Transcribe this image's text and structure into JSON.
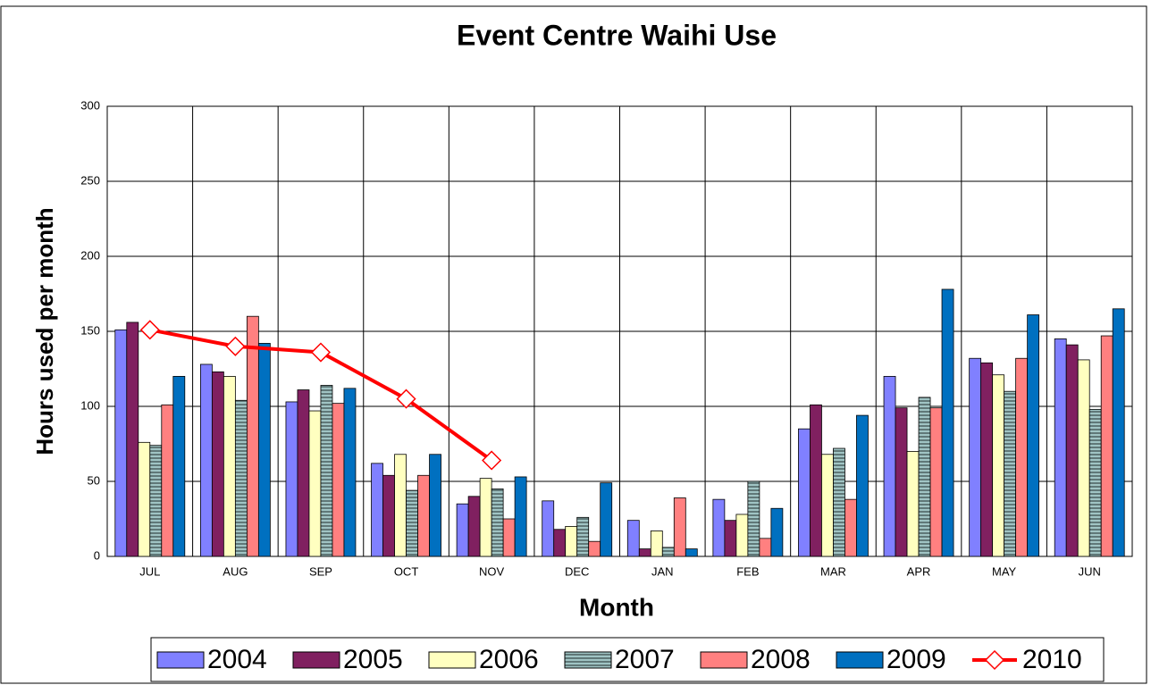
{
  "chart_data": {
    "type": "bar",
    "title": "Event Centre Waihi Use",
    "x_label": "Month",
    "y_label": "Hours used per month",
    "categories": [
      "JUL",
      "AUG",
      "SEP",
      "OCT",
      "NOV",
      "DEC",
      "JAN",
      "FEB",
      "MAR",
      "APR",
      "MAY",
      "JUN"
    ],
    "series": [
      {
        "name": "2004",
        "color": "#8080ff",
        "values": [
          151,
          128,
          103,
          62,
          35,
          37,
          24,
          38,
          85,
          120,
          132,
          145
        ]
      },
      {
        "name": "2005",
        "color": "#802060",
        "values": [
          156,
          123,
          111,
          54,
          40,
          18,
          5,
          24,
          101,
          99,
          129,
          141
        ]
      },
      {
        "name": "2006",
        "color": "#ffffc0",
        "values": [
          76,
          120,
          97,
          68,
          52,
          20,
          17,
          28,
          68,
          70,
          121,
          131
        ]
      },
      {
        "name": "2007",
        "color": "#a0c4c4",
        "pattern": "horizontal-stripes",
        "values": [
          74,
          104,
          114,
          44,
          45,
          26,
          6,
          50,
          72,
          106,
          110,
          98
        ]
      },
      {
        "name": "2008",
        "color": "#ff8080",
        "values": [
          101,
          160,
          102,
          54,
          25,
          10,
          39,
          12,
          38,
          99,
          132,
          147
        ]
      },
      {
        "name": "2009",
        "color": "#0070c0",
        "values": [
          120,
          142,
          112,
          68,
          53,
          49,
          5,
          32,
          94,
          178,
          161,
          165
        ]
      },
      {
        "name": "2010",
        "type": "line",
        "color": "#ff0000",
        "values": [
          151,
          140,
          136,
          105,
          64,
          null,
          null,
          null,
          null,
          null,
          null,
          null
        ]
      }
    ],
    "ylim": [
      0,
      300
    ],
    "yticks": [
      0,
      50,
      100,
      150,
      200,
      250,
      300
    ],
    "grid": true,
    "legend": "bottom"
  }
}
